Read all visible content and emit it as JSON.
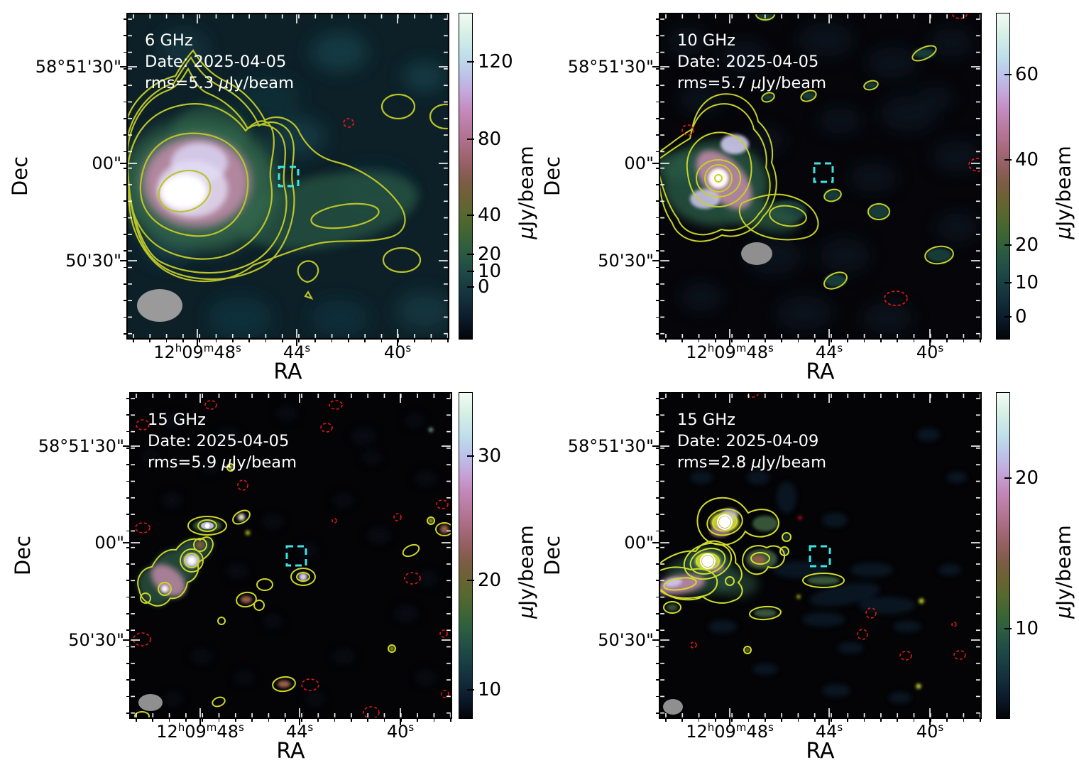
{
  "figure": {
    "xlabel": "RA",
    "ylabel": "Dec",
    "y_tick_labels": [
      "58°51'30\"",
      "00\"",
      "50'30\""
    ],
    "x_tick_labels": [
      {
        "parts": [
          {
            "t": "12"
          },
          {
            "t": "h",
            "sup": true
          },
          {
            "t": "09"
          },
          {
            "t": "m",
            "sup": true
          },
          {
            "t": "48"
          },
          {
            "t": "s",
            "sup": true
          }
        ]
      },
      {
        "parts": [
          {
            "t": "44"
          },
          {
            "t": "s",
            "sup": true
          }
        ]
      },
      {
        "parts": [
          {
            "t": "40"
          },
          {
            "t": "s",
            "sup": true
          }
        ]
      }
    ]
  },
  "panels": [
    {
      "position": "top-left",
      "freq": "6 GHz",
      "date": "Date: 2025-04-05",
      "rms": "rms=5.3 μJy/beam",
      "colorbar": {
        "unit": "μJy/beam",
        "ticks": [
          {
            "value": "120",
            "pos": 0.15
          },
          {
            "value": "80",
            "pos": 0.387
          },
          {
            "value": "40",
            "pos": 0.62
          },
          {
            "value": "20",
            "pos": 0.739
          },
          {
            "value": "10",
            "pos": 0.791
          },
          {
            "value": "0",
            "pos": 0.839
          }
        ]
      }
    },
    {
      "position": "top-right",
      "freq": "10 GHz",
      "date": "Date: 2025-04-05",
      "rms": "rms=5.7 μJy/beam",
      "colorbar": {
        "unit": "μJy/beam",
        "ticks": [
          {
            "value": "60",
            "pos": 0.19
          },
          {
            "value": "40",
            "pos": 0.45
          },
          {
            "value": "20",
            "pos": 0.71
          },
          {
            "value": "10",
            "pos": 0.826
          },
          {
            "value": "0",
            "pos": 0.93
          }
        ]
      }
    },
    {
      "position": "bottom-left",
      "freq": "15 GHz",
      "date": "Date: 2025-04-05",
      "rms": "rms=5.9 μJy/beam",
      "colorbar": {
        "unit": "μJy/beam",
        "ticks": [
          {
            "value": "30",
            "pos": 0.196
          },
          {
            "value": "20",
            "pos": 0.576
          },
          {
            "value": "10",
            "pos": 0.91
          }
        ]
      }
    },
    {
      "position": "bottom-right",
      "freq": "15 GHz",
      "date": "Date: 2025-04-09",
      "rms": "rms=2.8 μJy/beam",
      "colorbar": {
        "unit": "μJy/beam",
        "ticks": [
          {
            "value": "20",
            "pos": 0.264
          },
          {
            "value": "10",
            "pos": 0.724
          }
        ]
      }
    }
  ],
  "chart_data": [
    {
      "type": "heatmap",
      "panel": "top-left",
      "title": "6 GHz",
      "date": "2025-04-05",
      "rms_uJy_per_beam": 5.3,
      "colorbar_label": "μJy/beam",
      "colorbar_ticks": [
        0,
        10,
        20,
        40,
        80,
        120
      ],
      "colorbar_range_uJy": [
        -8,
        140
      ],
      "xlabel": "RA",
      "ylabel": "Dec",
      "x_tick_labels": [
        "12h09m48s",
        "44s",
        "40s"
      ],
      "y_tick_labels": [
        "58°51'30\"",
        "00\"",
        "50'30\""
      ],
      "contours": {
        "positive": "solid yellow, ~7 nested levels",
        "negative": "dashed red"
      },
      "features": "bright extended radio source left of center near 12h09m48s 58°50'50\" with diffuse tail extending toward 40s; cyan dashed box at field center; small yellow contour islands upper-right and lower-right; gray beam ellipse lower-left"
    },
    {
      "type": "heatmap",
      "panel": "top-right",
      "title": "10 GHz",
      "date": "2025-04-05",
      "rms_uJy_per_beam": 5.7,
      "colorbar_label": "μJy/beam",
      "colorbar_ticks": [
        0,
        10,
        20,
        40,
        60
      ],
      "colorbar_range_uJy": [
        0,
        75
      ],
      "xlabel": "RA",
      "ylabel": "Dec",
      "x_tick_labels": [
        "12h09m48s",
        "44s",
        "40s"
      ],
      "y_tick_labels": [
        "58°51'30\"",
        "00\"",
        "50'30\""
      ],
      "contours": {
        "positive": "solid yellow, nested around compact core",
        "negative": "dashed red"
      },
      "features": "compact bright core with pink diagonal extension near 12h09m48s; short green tail to the west; scattered small yellow contour islands; cyan dashed box at field center; gray beam ellipse below source"
    },
    {
      "type": "heatmap",
      "panel": "bottom-left",
      "title": "15 GHz",
      "date": "2025-04-05",
      "rms_uJy_per_beam": 5.9,
      "colorbar_label": "μJy/beam",
      "colorbar_ticks": [
        10,
        20,
        30
      ],
      "colorbar_range_uJy": [
        8,
        35
      ],
      "xlabel": "RA",
      "ylabel": "Dec",
      "x_tick_labels": [
        "12h09m48s",
        "44s",
        "40s"
      ],
      "y_tick_labels": [
        "58°51'30\"",
        "00\"",
        "50'30\""
      ],
      "contours": {
        "positive": "solid yellow around many small knots",
        "negative": "dashed red, many small ellipses"
      },
      "features": "emission fragmented into chain of compact knots on the east side; many faint noise blobs; cyan dashed box at field center; small gray beam ellipse lower-left"
    },
    {
      "type": "heatmap",
      "panel": "bottom-right",
      "title": "15 GHz",
      "date": "2025-04-09",
      "rms_uJy_per_beam": 2.8,
      "colorbar_label": "μJy/beam",
      "colorbar_ticks": [
        10,
        20
      ],
      "colorbar_range_uJy": [
        0,
        26
      ],
      "xlabel": "RA",
      "ylabel": "Dec",
      "x_tick_labels": [
        "12h09m48s",
        "44s",
        "40s"
      ],
      "y_tick_labels": [
        "58°51'30\"",
        "00\"",
        "50'30\""
      ],
      "contours": {
        "positive": "solid yellow, multiple concentric rings on two bright knots",
        "negative": "dashed red small circles lower-right"
      },
      "features": "two bright compact knots with concentric contours upper-left of center plus pink extended emission; cyan dashed box at field center; small gray beam ellipse lower-left"
    }
  ]
}
